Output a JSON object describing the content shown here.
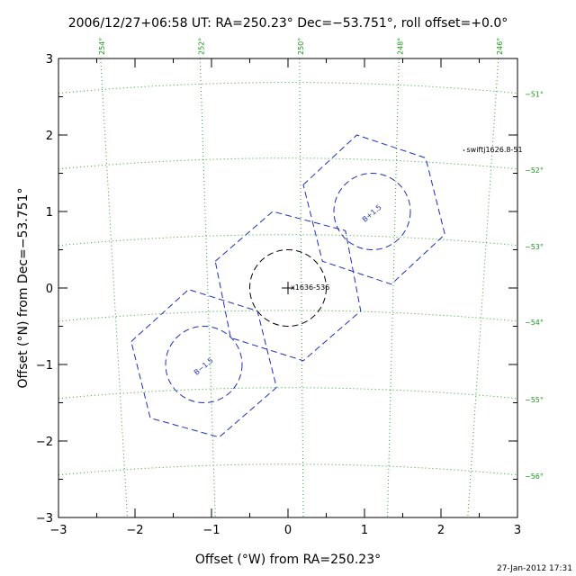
{
  "chart_data": {
    "type": "scatter",
    "title": "2006/12/27+06:58 UT: RA=250.23° Dec=−53.751°, roll offset=+0.0°",
    "xlabel": "Offset (°W) from RA=250.23°",
    "ylabel": "Offset (°N) from Dec=−53.751°",
    "xlim": [
      -3,
      3
    ],
    "ylim": [
      -3,
      3
    ],
    "x_ticks": [
      "−3",
      "−2",
      "−1",
      "0",
      "1",
      "2",
      "3"
    ],
    "y_ticks": [
      "−3",
      "−2",
      "−1",
      "0",
      "1",
      "2",
      "3"
    ],
    "ra_grid_labels": [
      "254°",
      "252°",
      "250°",
      "248°",
      "246°"
    ],
    "dec_grid_labels": [
      "−51°",
      "−52°",
      "−53°",
      "−54°",
      "−55°",
      "−56°"
    ],
    "grid": true,
    "fields": [
      {
        "label": "",
        "hexagon": [
          [
            0.2,
            1.35
          ],
          [
            0.9,
            2.0
          ],
          [
            1.8,
            1.7
          ],
          [
            2.05,
            0.7
          ],
          [
            1.35,
            0.05
          ],
          [
            0.45,
            0.35
          ]
        ],
        "circle": {
          "cx": 1.1,
          "cy": 1.0,
          "r": 0.5
        }
      },
      {
        "label": "",
        "hexagon": [
          [
            -0.95,
            0.35
          ],
          [
            -0.2,
            1.0
          ],
          [
            0.75,
            0.75
          ],
          [
            0.95,
            -0.3
          ],
          [
            0.2,
            -0.95
          ],
          [
            -0.75,
            -0.65
          ]
        ],
        "circle": {
          "cx": 0.0,
          "cy": 0.0,
          "r": 0.5
        }
      },
      {
        "label": "",
        "hexagon": [
          [
            -2.05,
            -0.7
          ],
          [
            -1.3,
            -0.02
          ],
          [
            -0.4,
            -0.3
          ],
          [
            -0.15,
            -1.3
          ],
          [
            -0.9,
            -1.95
          ],
          [
            -1.8,
            -1.7
          ]
        ],
        "circle": {
          "cx": -1.1,
          "cy": -1.0,
          "r": 0.5
        }
      }
    ],
    "circle_labels": [
      "B+1.5",
      "B−1.5"
    ],
    "sources": [
      {
        "name": "x1636-536",
        "x": 0.0,
        "y": 0.0
      },
      {
        "name": "swiftj1626.8-51",
        "x": 2.3,
        "y": 1.8
      }
    ]
  },
  "footer": {
    "timestamp": "27-Jan-2012 17:31"
  },
  "colors": {
    "axes": "#000000",
    "grid": "#2aa02a",
    "grid_label": "#1a9a1a",
    "fov": "#1f2fbf",
    "center_circle": "#000000"
  }
}
